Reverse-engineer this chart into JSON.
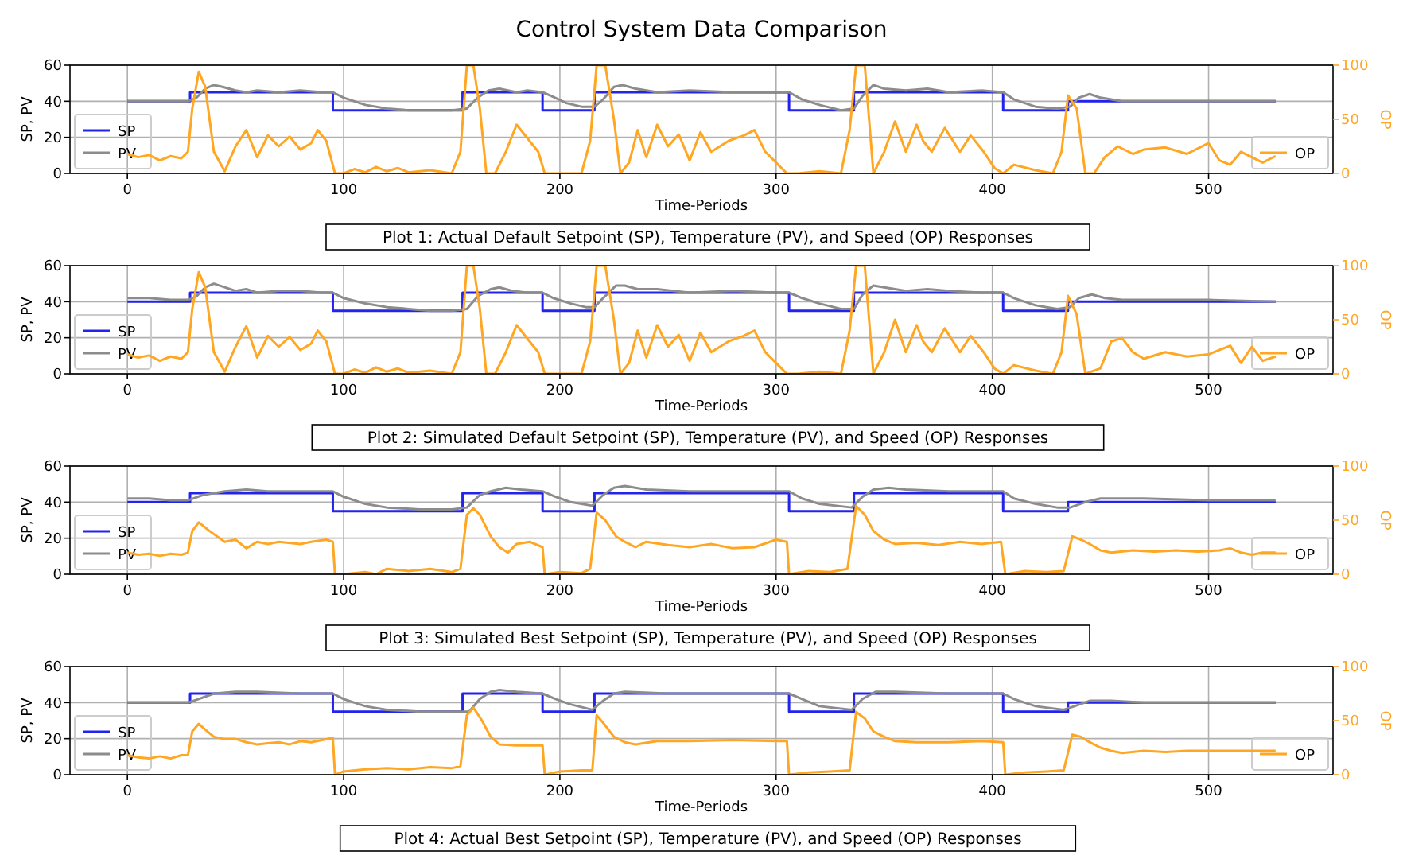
{
  "chart_data": [
    {
      "type": "line",
      "title": "Control System Data Comparison",
      "xlabel": "Time-Periods",
      "ylabel": "SP, PV",
      "y2label": "OP",
      "annotations": [
        "Plot 1: Actual Default Setpoint (SP), Temperature (PV), and Speed (OP) Responses"
      ],
      "xlim": [
        -26.55,
        557.55
      ],
      "xticks": [
        0,
        100,
        200,
        300,
        400,
        500
      ],
      "ylim": [
        0,
        60
      ],
      "yticks": [
        0,
        20,
        40,
        60
      ],
      "y2lim": [
        0,
        100
      ],
      "y2ticks": [
        0,
        50,
        100
      ],
      "grid": true,
      "legend": "bottom left",
      "series": [
        {
          "name": "SP",
          "type": "step",
          "color": "#2323ee",
          "x": [
            0,
            29,
            95,
            155,
            192,
            216,
            306,
            336,
            405,
            435,
            531
          ],
          "values": [
            40,
            45,
            35,
            45,
            35,
            45,
            35,
            45,
            35,
            40,
            40
          ]
        },
        {
          "name": "PV",
          "color": "#8c8c8c",
          "x": [
            0,
            10,
            20,
            28,
            32,
            36,
            40,
            44,
            50,
            55,
            60,
            70,
            80,
            90,
            95,
            100,
            110,
            120,
            130,
            140,
            150,
            157,
            162,
            167,
            172,
            180,
            185,
            192,
            196,
            203,
            210,
            216,
            220,
            225,
            229,
            235,
            245,
            260,
            280,
            300,
            306,
            312,
            320,
            330,
            336,
            340,
            345,
            350,
            360,
            370,
            380,
            395,
            405,
            410,
            420,
            430,
            436,
            440,
            445,
            450,
            460,
            480,
            500,
            531
          ],
          "values": [
            40,
            40,
            40,
            40,
            42,
            47,
            49,
            48,
            46,
            45,
            46,
            45,
            46,
            45,
            45,
            42,
            38,
            36,
            35,
            35,
            35,
            36,
            42,
            46,
            47,
            45,
            46,
            45,
            43,
            39,
            37,
            37,
            41,
            48,
            49,
            47,
            45,
            46,
            45,
            45,
            45,
            41,
            38,
            35,
            36,
            43,
            49,
            47,
            46,
            47,
            45,
            46,
            45,
            41,
            37,
            36,
            37,
            42,
            44,
            42,
            40,
            40,
            40,
            40
          ]
        },
        {
          "name": "OP",
          "color": "#ffa622",
          "axis": "y2",
          "x": [
            0,
            5,
            10,
            15,
            20,
            25,
            28,
            30,
            33,
            36,
            40,
            45,
            50,
            55,
            60,
            65,
            70,
            75,
            80,
            85,
            88,
            92,
            96,
            100,
            105,
            110,
            115,
            120,
            125,
            130,
            140,
            150,
            154,
            157,
            160,
            163,
            166,
            170,
            175,
            180,
            186,
            190,
            193,
            200,
            210,
            214,
            217,
            221,
            225,
            228,
            232,
            236,
            240,
            245,
            250,
            255,
            260,
            265,
            270,
            278,
            285,
            290,
            295,
            300,
            305,
            310,
            320,
            330,
            334,
            337,
            341,
            345,
            350,
            355,
            360,
            365,
            368,
            372,
            378,
            385,
            390,
            396,
            401,
            405,
            410,
            420,
            428,
            432,
            435,
            439,
            443,
            447,
            452,
            458,
            465,
            470,
            480,
            490,
            500,
            505,
            510,
            515,
            520,
            525,
            531
          ],
          "values": [
            18,
            15,
            17,
            12,
            16,
            14,
            20,
            60,
            94,
            80,
            20,
            2,
            25,
            40,
            15,
            35,
            25,
            34,
            22,
            28,
            40,
            30,
            0,
            0,
            4,
            1,
            6,
            2,
            5,
            1,
            3,
            0,
            20,
            100,
            100,
            60,
            0,
            0,
            20,
            45,
            30,
            20,
            0,
            0,
            0,
            30,
            100,
            100,
            50,
            0,
            10,
            40,
            15,
            45,
            25,
            36,
            12,
            38,
            20,
            30,
            35,
            40,
            20,
            10,
            0,
            0,
            2,
            0,
            40,
            100,
            100,
            0,
            20,
            48,
            20,
            45,
            30,
            20,
            42,
            20,
            35,
            20,
            5,
            0,
            8,
            3,
            0,
            20,
            72,
            60,
            0,
            0,
            15,
            25,
            18,
            22,
            24,
            18,
            28,
            12,
            8,
            20,
            15,
            10,
            16
          ]
        }
      ]
    },
    {
      "type": "line",
      "xlabel": "Time-Periods",
      "ylabel": "SP, PV",
      "y2label": "OP",
      "annotations": [
        "Plot 2: Simulated Default Setpoint (SP), Temperature (PV), and Speed (OP) Responses"
      ],
      "xlim": [
        -26.55,
        557.55
      ],
      "xticks": [
        0,
        100,
        200,
        300,
        400,
        500
      ],
      "ylim": [
        0,
        60
      ],
      "yticks": [
        0,
        20,
        40,
        60
      ],
      "y2lim": [
        0,
        100
      ],
      "y2ticks": [
        0,
        50,
        100
      ],
      "grid": true,
      "legend": "bottom left",
      "series": [
        {
          "name": "SP",
          "type": "step",
          "color": "#2323ee",
          "x": [
            0,
            29,
            95,
            155,
            192,
            216,
            306,
            336,
            405,
            435,
            531
          ],
          "values": [
            40,
            45,
            35,
            45,
            35,
            45,
            35,
            45,
            35,
            40,
            40
          ]
        },
        {
          "name": "PV",
          "color": "#8c8c8c",
          "x": [
            0,
            10,
            20,
            28,
            32,
            36,
            40,
            45,
            50,
            55,
            60,
            70,
            80,
            90,
            95,
            100,
            110,
            120,
            130,
            140,
            150,
            157,
            162,
            168,
            172,
            178,
            185,
            192,
            197,
            205,
            212,
            216,
            220,
            226,
            230,
            236,
            245,
            260,
            280,
            300,
            306,
            312,
            320,
            330,
            336,
            340,
            345,
            350,
            360,
            370,
            380,
            395,
            405,
            410,
            420,
            430,
            436,
            440,
            446,
            452,
            460,
            480,
            500,
            531
          ],
          "values": [
            42,
            42,
            41,
            41,
            43,
            48,
            50,
            48,
            46,
            47,
            45,
            46,
            46,
            45,
            45,
            42,
            39,
            37,
            36,
            35,
            35,
            36,
            43,
            47,
            48,
            46,
            45,
            45,
            42,
            39,
            37,
            37,
            42,
            49,
            49,
            47,
            47,
            45,
            46,
            45,
            45,
            42,
            39,
            36,
            36,
            44,
            49,
            48,
            46,
            47,
            46,
            45,
            45,
            42,
            38,
            36,
            37,
            42,
            44,
            42,
            41,
            41,
            41,
            40
          ]
        },
        {
          "name": "OP",
          "color": "#ffa622",
          "axis": "y2",
          "x": [
            0,
            5,
            10,
            15,
            20,
            25,
            28,
            30,
            33,
            36,
            40,
            45,
            50,
            55,
            60,
            65,
            70,
            75,
            80,
            85,
            88,
            92,
            96,
            100,
            105,
            110,
            115,
            120,
            125,
            130,
            140,
            150,
            154,
            157,
            160,
            163,
            166,
            170,
            175,
            180,
            186,
            190,
            193,
            200,
            210,
            214,
            217,
            221,
            225,
            228,
            232,
            236,
            240,
            245,
            250,
            255,
            260,
            265,
            270,
            278,
            285,
            290,
            295,
            300,
            305,
            310,
            320,
            330,
            334,
            337,
            341,
            345,
            350,
            355,
            360,
            365,
            368,
            372,
            378,
            385,
            390,
            396,
            401,
            405,
            410,
            420,
            428,
            432,
            435,
            439,
            443,
            450,
            455,
            460,
            465,
            470,
            480,
            490,
            500,
            510,
            515,
            520,
            525,
            531
          ],
          "values": [
            18,
            15,
            17,
            12,
            16,
            14,
            20,
            60,
            94,
            80,
            20,
            2,
            25,
            44,
            15,
            35,
            25,
            34,
            22,
            28,
            40,
            30,
            0,
            0,
            4,
            1,
            6,
            2,
            5,
            1,
            3,
            0,
            20,
            100,
            100,
            60,
            0,
            0,
            20,
            45,
            30,
            20,
            0,
            0,
            0,
            30,
            100,
            100,
            50,
            0,
            10,
            40,
            15,
            45,
            25,
            36,
            12,
            38,
            20,
            30,
            35,
            40,
            20,
            10,
            0,
            0,
            2,
            0,
            40,
            100,
            100,
            0,
            20,
            50,
            20,
            45,
            30,
            20,
            42,
            20,
            35,
            20,
            5,
            0,
            8,
            3,
            0,
            20,
            72,
            55,
            0,
            5,
            30,
            33,
            20,
            14,
            20,
            16,
            18,
            26,
            10,
            25,
            12,
            16
          ]
        }
      ]
    },
    {
      "type": "line",
      "xlabel": "Time-Periods",
      "ylabel": "SP, PV",
      "y2label": "OP",
      "annotations": [
        "Plot 3: Simulated Best Setpoint (SP), Temperature (PV), and Speed (OP) Responses"
      ],
      "xlim": [
        -26.55,
        557.55
      ],
      "xticks": [
        0,
        100,
        200,
        300,
        400,
        500
      ],
      "ylim": [
        0,
        60
      ],
      "yticks": [
        0,
        20,
        40,
        60
      ],
      "y2lim": [
        0,
        100
      ],
      "y2ticks": [
        0,
        50,
        100
      ],
      "grid": true,
      "legend": "bottom left",
      "series": [
        {
          "name": "SP",
          "type": "step",
          "color": "#2323ee",
          "x": [
            0,
            29,
            95,
            155,
            192,
            216,
            306,
            336,
            405,
            435,
            531
          ],
          "values": [
            40,
            45,
            35,
            45,
            35,
            45,
            35,
            45,
            35,
            40,
            40
          ]
        },
        {
          "name": "PV",
          "color": "#8c8c8c",
          "x": [
            0,
            10,
            20,
            28,
            35,
            45,
            55,
            65,
            80,
            95,
            100,
            110,
            120,
            135,
            150,
            157,
            163,
            168,
            175,
            182,
            192,
            198,
            205,
            215,
            220,
            225,
            230,
            240,
            260,
            280,
            306,
            312,
            320,
            335,
            340,
            345,
            352,
            360,
            380,
            405,
            410,
            420,
            430,
            436,
            443,
            450,
            470,
            500,
            531
          ],
          "values": [
            42,
            42,
            41,
            41,
            44,
            46,
            47,
            46,
            46,
            46,
            43,
            39,
            37,
            36,
            36,
            37,
            44,
            46,
            48,
            47,
            46,
            43,
            40,
            38,
            44,
            48,
            49,
            47,
            46,
            46,
            46,
            42,
            39,
            37,
            43,
            47,
            48,
            47,
            46,
            46,
            42,
            39,
            37,
            37,
            40,
            42,
            42,
            41,
            41
          ]
        },
        {
          "name": "OP",
          "color": "#ffa622",
          "axis": "y2",
          "x": [
            0,
            5,
            10,
            15,
            20,
            25,
            28,
            30,
            33,
            38,
            45,
            50,
            55,
            60,
            65,
            70,
            80,
            85,
            92,
            95,
            96,
            100,
            110,
            115,
            120,
            130,
            140,
            150,
            154,
            157,
            160,
            163,
            168,
            172,
            176,
            180,
            186,
            192,
            193,
            200,
            210,
            214,
            217,
            221,
            226,
            230,
            235,
            240,
            250,
            260,
            270,
            280,
            290,
            300,
            305,
            306,
            315,
            325,
            333,
            337,
            341,
            345,
            350,
            355,
            365,
            375,
            385,
            395,
            404,
            406,
            415,
            425,
            433,
            437,
            441,
            445,
            450,
            455,
            465,
            475,
            485,
            495,
            505,
            510,
            515,
            520,
            525,
            531
          ],
          "values": [
            20,
            18,
            19,
            17,
            19,
            18,
            20,
            40,
            48,
            40,
            30,
            32,
            24,
            30,
            28,
            30,
            28,
            30,
            32,
            30,
            0,
            0,
            2,
            0,
            5,
            3,
            5,
            2,
            5,
            55,
            61,
            55,
            35,
            25,
            20,
            28,
            30,
            25,
            0,
            2,
            1,
            5,
            57,
            50,
            35,
            30,
            25,
            30,
            27,
            25,
            28,
            24,
            25,
            32,
            30,
            0,
            3,
            2,
            5,
            63,
            55,
            40,
            32,
            28,
            29,
            27,
            30,
            28,
            30,
            0,
            3,
            2,
            3,
            35,
            32,
            28,
            22,
            20,
            22,
            21,
            22,
            21,
            22,
            24,
            20,
            18,
            20,
            20
          ]
        }
      ]
    },
    {
      "type": "line",
      "xlabel": "Time-Periods",
      "ylabel": "SP, PV",
      "y2label": "OP",
      "annotations": [
        "Plot 4: Actual Best Setpoint (SP), Temperature (PV), and Speed (OP) Responses"
      ],
      "xlim": [
        -26.55,
        557.55
      ],
      "xticks": [
        0,
        100,
        200,
        300,
        400,
        500
      ],
      "ylim": [
        0,
        60
      ],
      "yticks": [
        0,
        20,
        40,
        60
      ],
      "y2lim": [
        0,
        100
      ],
      "y2ticks": [
        0,
        50,
        100
      ],
      "grid": true,
      "legend": "bottom left",
      "series": [
        {
          "name": "SP",
          "type": "step",
          "color": "#2323ee",
          "x": [
            0,
            29,
            95,
            155,
            192,
            216,
            306,
            336,
            405,
            435,
            531
          ],
          "values": [
            40,
            45,
            35,
            45,
            35,
            45,
            35,
            45,
            35,
            40,
            40
          ]
        },
        {
          "name": "PV",
          "color": "#8c8c8c",
          "x": [
            0,
            10,
            20,
            28,
            33,
            40,
            50,
            60,
            80,
            95,
            100,
            110,
            120,
            135,
            158,
            163,
            168,
            172,
            180,
            192,
            198,
            205,
            215,
            220,
            225,
            230,
            250,
            306,
            312,
            320,
            335,
            340,
            346,
            355,
            380,
            405,
            410,
            420,
            433,
            438,
            445,
            455,
            470,
            531
          ],
          "values": [
            40,
            40,
            40,
            40,
            42,
            45,
            46,
            46,
            45,
            45,
            42,
            38,
            36,
            35,
            35,
            42,
            46,
            47,
            46,
            45,
            42,
            39,
            36,
            41,
            45,
            46,
            45,
            45,
            42,
            38,
            36,
            42,
            46,
            46,
            45,
            45,
            42,
            38,
            36,
            38,
            41,
            41,
            40,
            40
          ]
        },
        {
          "name": "OP",
          "color": "#ffa622",
          "axis": "y2",
          "x": [
            0,
            5,
            10,
            15,
            20,
            25,
            28,
            30,
            33,
            37,
            40,
            45,
            50,
            55,
            60,
            65,
            70,
            75,
            80,
            85,
            90,
            95,
            96,
            100,
            110,
            120,
            130,
            140,
            150,
            154,
            157,
            160,
            164,
            168,
            172,
            180,
            192,
            193,
            200,
            210,
            215,
            217,
            220,
            225,
            230,
            235,
            245,
            260,
            280,
            300,
            305,
            306,
            315,
            325,
            334,
            337,
            341,
            345,
            350,
            355,
            365,
            380,
            395,
            405,
            406,
            415,
            425,
            433,
            437,
            441,
            445,
            450,
            455,
            460,
            470,
            480,
            490,
            500,
            510,
            520,
            531
          ],
          "values": [
            18,
            16,
            15,
            17,
            15,
            18,
            18,
            40,
            47,
            40,
            35,
            33,
            33,
            30,
            28,
            29,
            30,
            28,
            31,
            30,
            32,
            34,
            0,
            3,
            5,
            6,
            5,
            7,
            6,
            8,
            55,
            62,
            50,
            35,
            28,
            27,
            27,
            0,
            3,
            4,
            4,
            55,
            48,
            35,
            30,
            28,
            31,
            31,
            32,
            31,
            31,
            0,
            2,
            3,
            4,
            58,
            52,
            40,
            35,
            31,
            30,
            30,
            31,
            30,
            0,
            2,
            3,
            4,
            37,
            35,
            30,
            25,
            22,
            20,
            22,
            21,
            22,
            22,
            22,
            22,
            22
          ]
        }
      ]
    }
  ]
}
